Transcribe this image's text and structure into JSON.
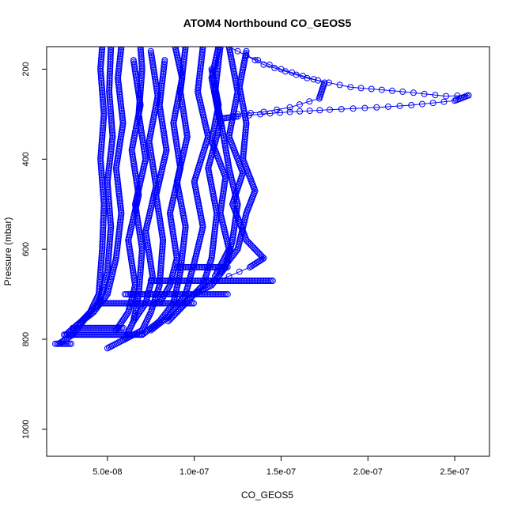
{
  "chart_data": {
    "type": "scatter",
    "title": "ATOM4 Northbound CO_GEOS5",
    "xlabel": "CO_GEOS5",
    "ylabel": "Pressure (mbar)",
    "xlim": [
      1.5e-08,
      2.7e-07
    ],
    "ylim": [
      1060,
      150
    ],
    "y_reversed": true,
    "grid": false,
    "marker": "open-circle",
    "color": "#0000ff",
    "x_ticks": [
      {
        "value": 5e-08,
        "label": "5.0e-08"
      },
      {
        "value": 1e-07,
        "label": "1.0e-07"
      },
      {
        "value": 1.5e-07,
        "label": "1.5e-07"
      },
      {
        "value": 2e-07,
        "label": "2.0e-07"
      },
      {
        "value": 2.5e-07,
        "label": "2.5e-07"
      }
    ],
    "y_ticks": [
      {
        "value": 200,
        "label": "200"
      },
      {
        "value": 400,
        "label": "400"
      },
      {
        "value": 600,
        "label": "600"
      },
      {
        "value": 800,
        "label": "800"
      },
      {
        "value": 1000,
        "label": "1000"
      }
    ],
    "series": [
      {
        "points": [
          [
            2.2e-08,
            810
          ],
          [
            3e-08,
            790
          ],
          [
            4e-08,
            740
          ],
          [
            4.5e-08,
            700
          ],
          [
            4.7e-08,
            600
          ],
          [
            4.8e-08,
            500
          ],
          [
            4.6e-08,
            400
          ],
          [
            4.8e-08,
            300
          ],
          [
            4.6e-08,
            200
          ],
          [
            4.7e-08,
            150
          ]
        ]
      },
      {
        "points": [
          [
            2.6e-08,
            790
          ],
          [
            3.5e-08,
            760
          ],
          [
            4.5e-08,
            720
          ],
          [
            5e-08,
            650
          ],
          [
            5.2e-08,
            550
          ],
          [
            5e-08,
            450
          ],
          [
            5.3e-08,
            350
          ],
          [
            5.1e-08,
            250
          ],
          [
            5.2e-08,
            150
          ]
        ]
      },
      {
        "points": [
          [
            3.2e-08,
            770
          ],
          [
            4.2e-08,
            740
          ],
          [
            5e-08,
            700
          ],
          [
            5.5e-08,
            620
          ],
          [
            5.8e-08,
            520
          ],
          [
            5.5e-08,
            420
          ],
          [
            5.9e-08,
            320
          ],
          [
            5.6e-08,
            220
          ],
          [
            5.8e-08,
            150
          ]
        ]
      },
      {
        "points": [
          [
            5e-08,
            820
          ],
          [
            6e-08,
            800
          ],
          [
            6.5e-08,
            760
          ],
          [
            6.8e-08,
            700
          ],
          [
            7e-08,
            600
          ],
          [
            6.6e-08,
            500
          ],
          [
            7.2e-08,
            400
          ],
          [
            6.8e-08,
            300
          ],
          [
            7e-08,
            200
          ],
          [
            6.9e-08,
            150
          ]
        ]
      },
      {
        "points": [
          [
            6e-08,
            800
          ],
          [
            7e-08,
            780
          ],
          [
            7.5e-08,
            740
          ],
          [
            8e-08,
            680
          ],
          [
            8.2e-08,
            580
          ],
          [
            7.8e-08,
            480
          ],
          [
            8.4e-08,
            380
          ],
          [
            8e-08,
            280
          ],
          [
            8.3e-08,
            180
          ]
        ]
      },
      {
        "points": [
          [
            7e-08,
            790
          ],
          [
            8e-08,
            760
          ],
          [
            8.8e-08,
            720
          ],
          [
            9.2e-08,
            650
          ],
          [
            9.5e-08,
            550
          ],
          [
            9e-08,
            450
          ],
          [
            9.6e-08,
            350
          ],
          [
            9.2e-08,
            250
          ],
          [
            9.5e-08,
            150
          ]
        ]
      },
      {
        "points": [
          [
            7.5e-08,
            780
          ],
          [
            8.5e-08,
            750
          ],
          [
            9.5e-08,
            700
          ],
          [
            1e-07,
            630
          ],
          [
            1.05e-07,
            550
          ],
          [
            1e-07,
            450
          ],
          [
            1.08e-07,
            350
          ],
          [
            1.02e-07,
            250
          ],
          [
            1.05e-07,
            150
          ]
        ]
      },
      {
        "points": [
          [
            8.5e-08,
            760
          ],
          [
            9.5e-08,
            720
          ],
          [
            1.05e-07,
            680
          ],
          [
            1.1e-07,
            620
          ],
          [
            1.13e-07,
            520
          ],
          [
            1.08e-07,
            420
          ],
          [
            1.15e-07,
            320
          ],
          [
            1.1e-07,
            220
          ],
          [
            1.14e-07,
            150
          ]
        ]
      },
      {
        "points": [
          [
            1e-07,
            700
          ],
          [
            1.1e-07,
            680
          ],
          [
            1.18e-07,
            640
          ],
          [
            1.22e-07,
            580
          ],
          [
            1.25e-07,
            500
          ],
          [
            1.2e-07,
            420
          ],
          [
            1.16e-07,
            330
          ],
          [
            1.12e-07,
            250
          ],
          [
            1.15e-07,
            150
          ]
        ]
      },
      {
        "points": [
          [
            1.05e-07,
            680
          ],
          [
            1.2e-07,
            660
          ],
          [
            1.32e-07,
            640
          ],
          [
            1.4e-07,
            620
          ],
          [
            1.3e-07,
            580
          ],
          [
            1.22e-07,
            500
          ],
          [
            1.28e-07,
            430
          ],
          [
            1.2e-07,
            350
          ],
          [
            1.25e-07,
            250
          ],
          [
            1.2e-07,
            150
          ]
        ]
      },
      {
        "points": [
          [
            9e-08,
            740
          ],
          [
            1e-07,
            700
          ],
          [
            1.12e-07,
            660
          ],
          [
            1.2e-07,
            600
          ],
          [
            1.15e-07,
            520
          ],
          [
            1.18e-07,
            440
          ],
          [
            1.1e-07,
            360
          ],
          [
            1.14e-07,
            280
          ],
          [
            1.1e-07,
            200
          ]
        ]
      },
      {
        "points": [
          [
            6.5e-08,
            760
          ],
          [
            7.2e-08,
            720
          ],
          [
            7.6e-08,
            660
          ],
          [
            7.2e-08,
            560
          ],
          [
            7.8e-08,
            460
          ],
          [
            7.4e-08,
            360
          ],
          [
            7.9e-08,
            260
          ],
          [
            7.5e-08,
            160
          ]
        ]
      },
      {
        "points": [
          [
            5.5e-08,
            780
          ],
          [
            6.2e-08,
            740
          ],
          [
            6.6e-08,
            680
          ],
          [
            6.2e-08,
            580
          ],
          [
            6.8e-08,
            480
          ],
          [
            6.4e-08,
            380
          ],
          [
            6.9e-08,
            280
          ],
          [
            6.5e-08,
            180
          ]
        ]
      },
      {
        "points": [
          [
            8e-08,
            720
          ],
          [
            8.6e-08,
            680
          ],
          [
            9e-08,
            620
          ],
          [
            8.6e-08,
            520
          ],
          [
            9.2e-08,
            420
          ],
          [
            8.8e-08,
            320
          ],
          [
            9.3e-08,
            220
          ],
          [
            8.9e-08,
            150
          ]
        ]
      },
      {
        "points": [
          [
            1.15e-07,
            650
          ],
          [
            1.25e-07,
            600
          ],
          [
            1.3e-07,
            520
          ],
          [
            1.35e-07,
            470
          ],
          [
            1.28e-07,
            400
          ],
          [
            1.3e-07,
            320
          ],
          [
            1.26e-07,
            240
          ],
          [
            1.3e-07,
            160
          ]
        ]
      },
      {
        "points": [
          [
            1.2e-07,
            150
          ],
          [
            1.4e-07,
            190
          ],
          [
            1.65e-07,
            220
          ],
          [
            1.9e-07,
            240
          ],
          [
            2.2e-07,
            250
          ],
          [
            2.45e-07,
            260
          ],
          [
            2.58e-07,
            258
          ],
          [
            2.5e-07,
            270
          ],
          [
            2.25e-07,
            280
          ],
          [
            2.05e-07,
            285
          ],
          [
            1.78e-07,
            290
          ],
          [
            1.55e-07,
            295
          ],
          [
            1.38e-07,
            300
          ],
          [
            1.25e-07,
            305
          ],
          [
            1.15e-07,
            310
          ]
        ]
      },
      {
        "points": [
          [
            1.3e-07,
            170
          ],
          [
            1.5e-07,
            200
          ],
          [
            1.75e-07,
            230
          ],
          [
            1.72e-07,
            265
          ],
          [
            1.55e-07,
            285
          ],
          [
            1.4e-07,
            295
          ],
          [
            1.25e-07,
            300
          ]
        ]
      }
    ],
    "flat_segments": [
      {
        "y": 810,
        "x0": 2e-08,
        "x1": 3e-08
      },
      {
        "y": 790,
        "x0": 2.5e-08,
        "x1": 7e-08
      },
      {
        "y": 775,
        "x0": 3e-08,
        "x1": 6e-08
      },
      {
        "y": 720,
        "x0": 4.5e-08,
        "x1": 1e-07
      },
      {
        "y": 700,
        "x0": 6e-08,
        "x1": 1.2e-07
      },
      {
        "y": 670,
        "x0": 7.5e-08,
        "x1": 1.46e-07
      },
      {
        "y": 640,
        "x0": 9e-08,
        "x1": 1.2e-07
      }
    ]
  }
}
